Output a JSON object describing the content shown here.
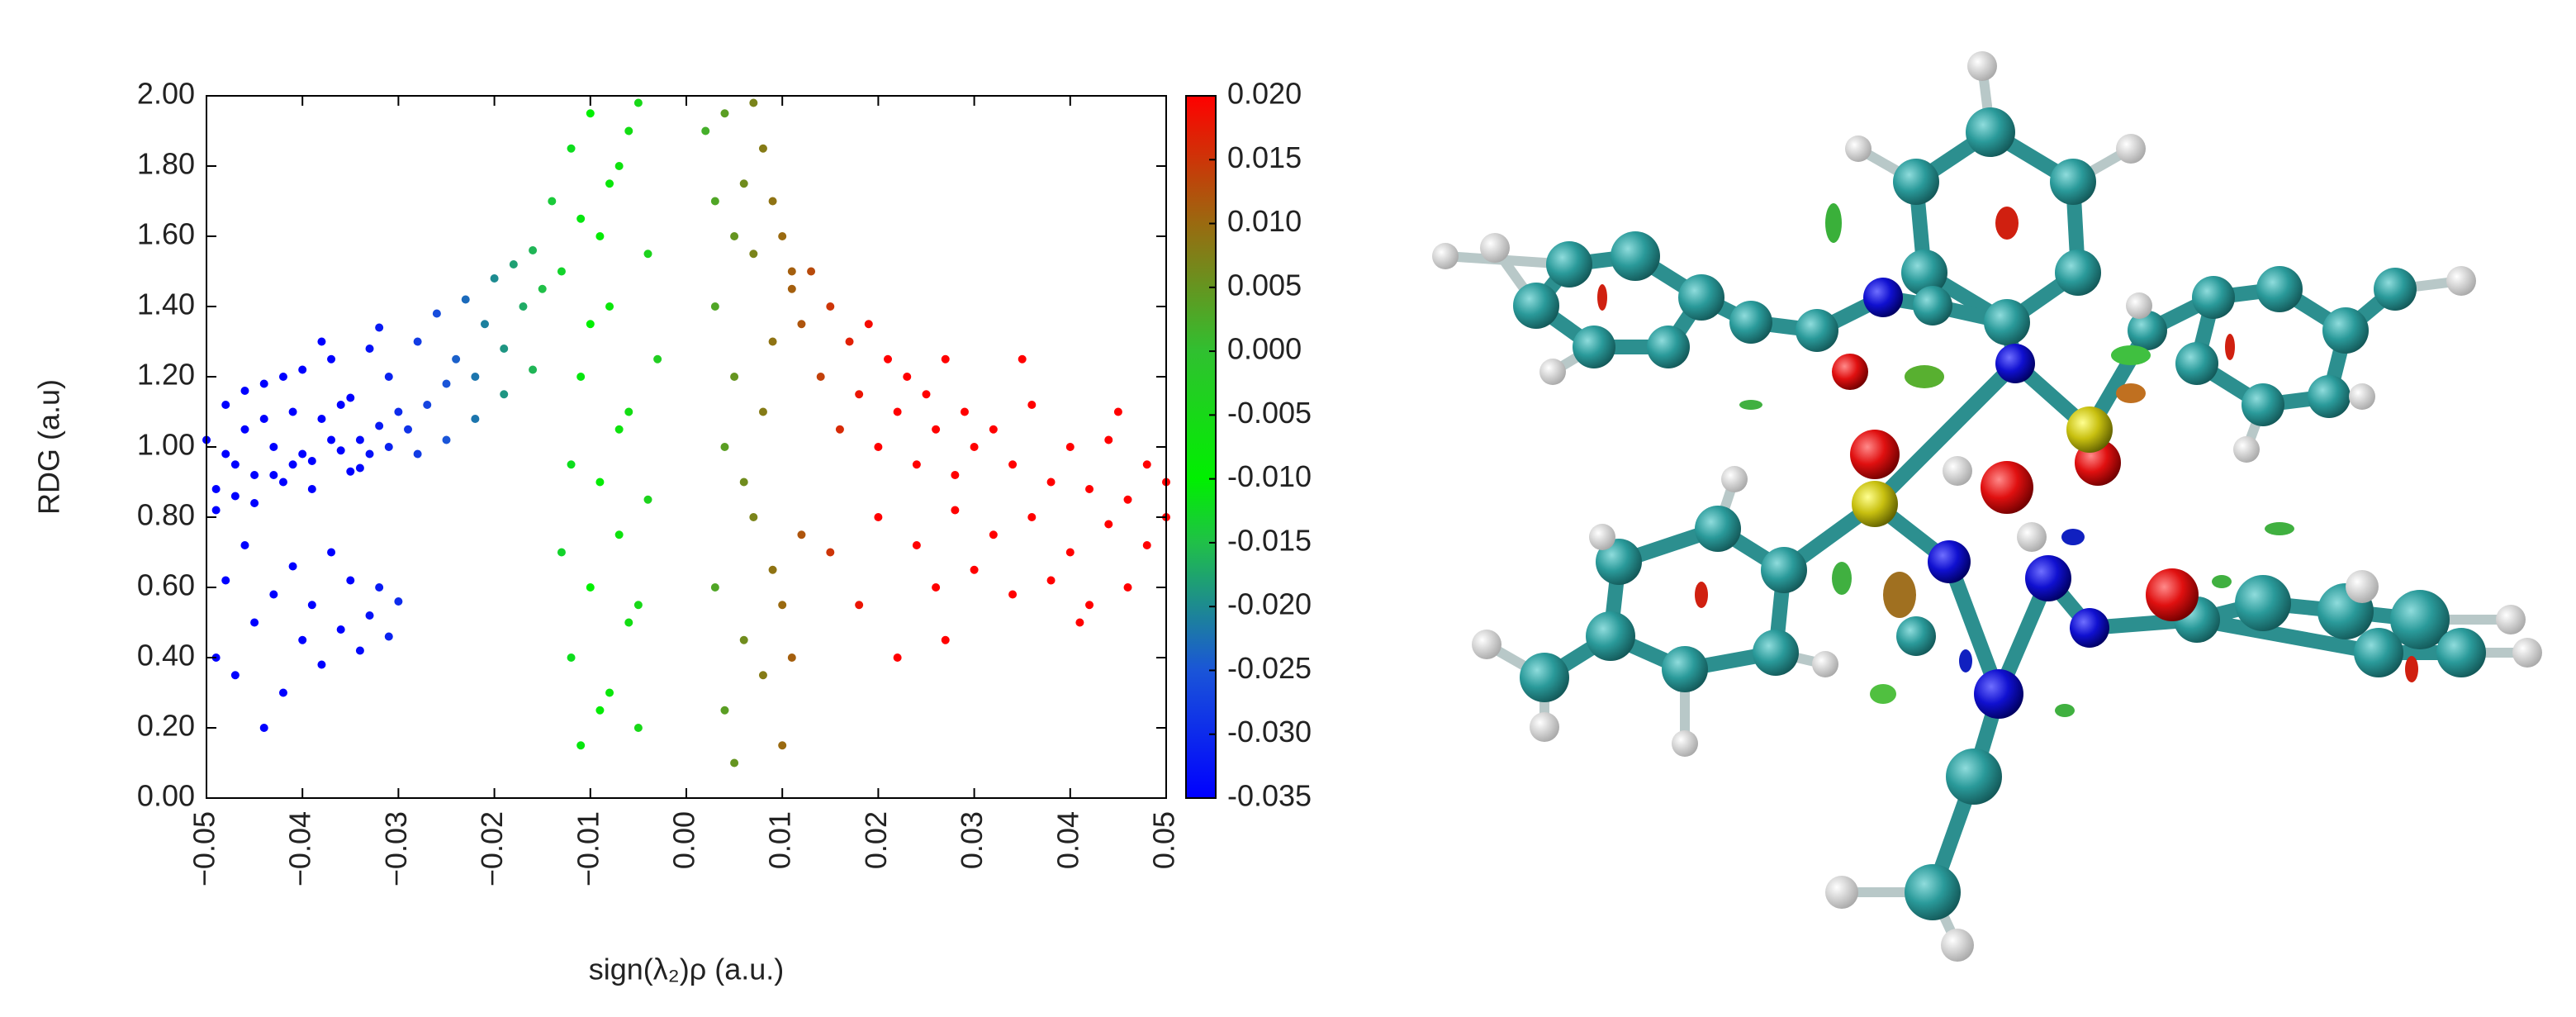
{
  "chart_data": {
    "type": "scatter",
    "x_label": "sign(λ₂)ρ (a.u.)",
    "y_label": "RDG (a.u)",
    "x": [
      -0.049,
      -0.048,
      -0.047,
      -0.046,
      -0.045,
      -0.044,
      -0.043,
      -0.042,
      -0.041,
      -0.04,
      -0.039,
      -0.038,
      -0.037,
      -0.036,
      -0.035,
      -0.034,
      -0.033,
      -0.032,
      -0.031,
      -0.03,
      -0.05,
      -0.048,
      -0.046,
      -0.044,
      -0.042,
      -0.04,
      -0.038,
      -0.036,
      -0.034,
      -0.032,
      -0.049,
      -0.047,
      -0.045,
      -0.043,
      -0.041,
      -0.039,
      -0.037,
      -0.035,
      -0.033,
      -0.031,
      -0.049,
      -0.048,
      -0.047,
      -0.046,
      -0.045,
      -0.044,
      -0.043,
      -0.042,
      -0.041,
      -0.04,
      -0.039,
      -0.038,
      -0.037,
      -0.036,
      -0.035,
      -0.034,
      -0.033,
      -0.032,
      -0.031,
      -0.03,
      -0.029,
      -0.028,
      -0.027,
      -0.026,
      -0.025,
      -0.024,
      -0.023,
      -0.022,
      -0.021,
      -0.02,
      -0.019,
      -0.018,
      -0.017,
      -0.016,
      -0.015,
      -0.028,
      -0.025,
      -0.022,
      -0.019,
      -0.016,
      -0.014,
      -0.013,
      -0.012,
      -0.012,
      -0.011,
      -0.011,
      -0.01,
      -0.01,
      -0.009,
      -0.009,
      -0.008,
      -0.008,
      -0.007,
      -0.007,
      -0.006,
      -0.006,
      -0.005,
      -0.005,
      -0.004,
      -0.004,
      -0.013,
      -0.012,
      -0.011,
      -0.01,
      -0.009,
      -0.008,
      -0.007,
      -0.006,
      -0.005,
      -0.003,
      0.002,
      0.003,
      0.003,
      0.004,
      0.004,
      0.005,
      0.005,
      0.006,
      0.006,
      0.007,
      0.007,
      0.008,
      0.008,
      0.009,
      0.009,
      0.01,
      0.01,
      0.011,
      0.011,
      0.012,
      0.003,
      0.004,
      0.005,
      0.006,
      0.007,
      0.008,
      0.009,
      0.01,
      0.011,
      0.012,
      0.013,
      0.014,
      0.015,
      0.016,
      0.017,
      0.018,
      0.019,
      0.02,
      0.021,
      0.022,
      0.023,
      0.024,
      0.025,
      0.026,
      0.027,
      0.028,
      0.029,
      0.03,
      0.032,
      0.034,
      0.036,
      0.038,
      0.04,
      0.042,
      0.044,
      0.046,
      0.048,
      0.05,
      0.035,
      0.045,
      0.015,
      0.018,
      0.02,
      0.022,
      0.024,
      0.026,
      0.028,
      0.03,
      0.032,
      0.034,
      0.036,
      0.038,
      0.04,
      0.042,
      0.044,
      0.046,
      0.048,
      0.05,
      0.027,
      0.041
    ],
    "values": [
      0.88,
      1.12,
      0.95,
      1.05,
      0.92,
      1.18,
      1.0,
      0.9,
      1.1,
      1.22,
      0.96,
      1.08,
      1.25,
      0.99,
      1.14,
      1.02,
      1.28,
      1.06,
      1.2,
      1.1,
      1.02,
      0.98,
      1.16,
      1.08,
      1.2,
      0.98,
      1.3,
      1.12,
      0.94,
      1.34,
      0.82,
      0.86,
      0.84,
      0.92,
      0.95,
      0.88,
      1.02,
      0.93,
      0.98,
      1.0,
      0.4,
      0.62,
      0.35,
      0.72,
      0.5,
      0.2,
      0.58,
      0.3,
      0.66,
      0.45,
      0.55,
      0.38,
      0.7,
      0.48,
      0.62,
      0.42,
      0.52,
      0.6,
      0.46,
      0.56,
      1.05,
      1.3,
      1.12,
      1.38,
      1.18,
      1.25,
      1.42,
      1.2,
      1.35,
      1.48,
      1.28,
      1.52,
      1.4,
      1.56,
      1.45,
      0.98,
      1.02,
      1.08,
      1.15,
      1.22,
      1.7,
      1.5,
      0.4,
      1.85,
      0.15,
      1.2,
      0.6,
      1.95,
      0.9,
      1.6,
      0.3,
      1.4,
      0.75,
      1.8,
      1.1,
      0.5,
      0.2,
      1.98,
      0.85,
      1.55,
      0.7,
      0.95,
      1.65,
      1.35,
      0.25,
      1.75,
      1.05,
      1.9,
      0.55,
      1.25,
      1.9,
      1.4,
      0.6,
      1.95,
      0.25,
      1.2,
      0.1,
      1.75,
      0.45,
      1.55,
      0.8,
      1.85,
      0.35,
      1.3,
      0.65,
      1.6,
      0.15,
      1.45,
      0.4,
      1.35,
      1.7,
      1.0,
      1.6,
      0.9,
      1.98,
      1.1,
      1.7,
      0.55,
      1.5,
      0.75,
      1.5,
      1.2,
      1.4,
      1.05,
      1.3,
      1.15,
      1.35,
      1.0,
      1.25,
      1.1,
      1.2,
      0.95,
      1.15,
      1.05,
      1.25,
      0.92,
      1.1,
      1.0,
      1.05,
      0.95,
      1.12,
      0.9,
      1.0,
      0.88,
      1.02,
      0.85,
      0.95,
      0.9,
      1.25,
      1.1,
      0.7,
      0.55,
      0.8,
      0.4,
      0.72,
      0.6,
      0.82,
      0.65,
      0.75,
      0.58,
      0.8,
      0.62,
      0.7,
      0.55,
      0.78,
      0.6,
      0.72,
      0.8,
      0.45,
      0.5
    ],
    "xlim": [
      -0.05,
      0.05
    ],
    "ylim": [
      0,
      2
    ],
    "xticks": [
      {
        "value": -0.05,
        "label": "−0.05"
      },
      {
        "value": -0.04,
        "label": "−0.04"
      },
      {
        "value": -0.03,
        "label": "−0.03"
      },
      {
        "value": -0.02,
        "label": "−0.02"
      },
      {
        "value": -0.01,
        "label": "−0.01"
      },
      {
        "value": 0,
        "label": "0.00"
      },
      0.01,
      0.02,
      0.03,
      0.04,
      0.05
    ],
    "yticks": [
      {
        "value": 0,
        "label": "0.00"
      },
      {
        "value": 0.2,
        "label": "0.20"
      },
      {
        "value": 0.4,
        "label": "0.40"
      },
      {
        "value": 0.6,
        "label": "0.60"
      },
      {
        "value": 0.8,
        "label": "0.80"
      },
      {
        "value": 1,
        "label": "1.00"
      },
      {
        "value": 1.2,
        "label": "1.20"
      },
      {
        "value": 1.4,
        "label": "1.40"
      },
      {
        "value": 1.6,
        "label": "1.60"
      },
      {
        "value": 1.8,
        "label": "1.80"
      },
      {
        "value": 2,
        "label": "2.00"
      }
    ],
    "grid": false,
    "colorbar": {
      "clim": [
        -0.035,
        0.02
      ],
      "ticks": [
        {
          "value": 0.02,
          "label": "0.020"
        },
        0.015,
        {
          "value": 0.01,
          "label": "0.010"
        },
        0.005,
        {
          "value": 0,
          "label": "0.000"
        },
        -0.005,
        {
          "value": -0.01,
          "label": "-0.010"
        },
        -0.015,
        {
          "value": -0.02,
          "label": "-0.020"
        },
        -0.025,
        {
          "value": -0.03,
          "label": "-0.030"
        },
        -0.035
      ],
      "colormap": [
        {
          "value": -0.035,
          "color": "#0000ff"
        },
        {
          "value": -0.025,
          "color": "#1a55d8"
        },
        {
          "value": -0.015,
          "color": "#20c048"
        },
        {
          "value": -0.01,
          "color": "#00f000"
        },
        {
          "value": 0,
          "color": "#30c030"
        },
        {
          "value": 0.01,
          "color": "#9a6a10"
        },
        {
          "value": 0.02,
          "color": "#ff0000"
        }
      ]
    }
  }
}
